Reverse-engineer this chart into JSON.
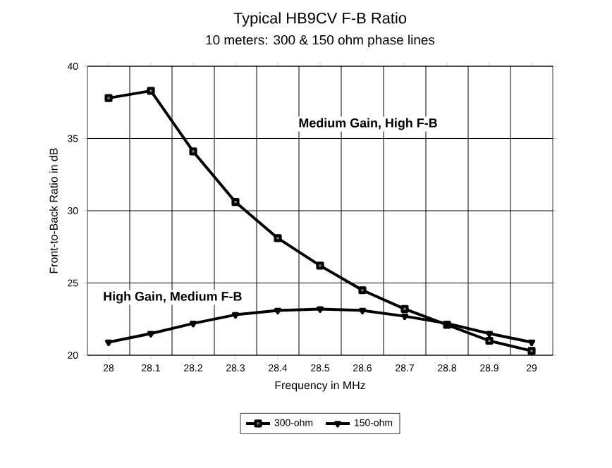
{
  "chart_data": {
    "type": "line",
    "title": "Typical HB9CV F-B Ratio",
    "subtitle": "10 meters:  300 & 150 ohm phase lines",
    "xlabel": "Frequency in MHz",
    "ylabel": "Front-to-Back Ratio in dB",
    "categories": [
      "28",
      "28.1",
      "28.2",
      "28.3",
      "28.4",
      "28.5",
      "28.6",
      "28.7",
      "28.8",
      "28.9",
      "29"
    ],
    "series": [
      {
        "name": "300-ohm",
        "color": "#000000",
        "marker": "square",
        "values": [
          37.8,
          38.3,
          34.1,
          30.6,
          28.1,
          26.2,
          24.5,
          23.2,
          22.1,
          21.0,
          20.3
        ]
      },
      {
        "name": "150-ohm",
        "color": "#000000",
        "marker": "triangle",
        "values": [
          20.9,
          21.5,
          22.2,
          22.8,
          23.1,
          23.2,
          23.1,
          22.7,
          22.2,
          21.5,
          20.9
        ]
      }
    ],
    "ylim": [
      20,
      40
    ],
    "yticks": [
      20,
      25,
      30,
      35,
      40
    ],
    "grid": true,
    "legend": "bottom",
    "line_style": "solid",
    "annotations": [
      "Medium Gain, High F-B",
      "High Gain, Medium F-B"
    ]
  }
}
